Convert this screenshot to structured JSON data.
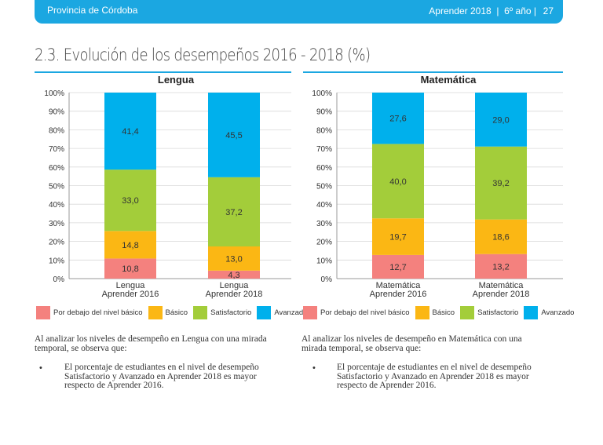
{
  "header": {
    "province": "Provincia de Córdoba",
    "pub": "Aprender 2018  |  6º año |",
    "page": "27"
  },
  "section_title": "2.3. Evolución de los desempeños 2016 - 2018 (%)",
  "colors": {
    "below_basic": "#f4817e",
    "basic": "#fbb714",
    "satisfactory": "#a3cd3a",
    "advanced": "#00b0ec",
    "rule": "#1ba7e1"
  },
  "legend": [
    "Por debajo del nivel básico",
    "Básico",
    "Satisfactorio",
    "Avanzado"
  ],
  "chart_data": [
    {
      "type": "bar",
      "stacked": true,
      "title": "Lengua",
      "categories": [
        "Lengua\nAprender 2016",
        "Lengua\nAprender 2018"
      ],
      "ylim": [
        0,
        100
      ],
      "yticks": [
        "0%",
        "10%",
        "20%",
        "30%",
        "40%",
        "50%",
        "60%",
        "70%",
        "80%",
        "90%",
        "100%"
      ],
      "series": [
        {
          "name": "Por debajo del nivel básico",
          "values": [
            10.8,
            4.3
          ],
          "labels": [
            "10,8",
            "4,3"
          ]
        },
        {
          "name": "Básico",
          "values": [
            14.8,
            13.0
          ],
          "labels": [
            "14,8",
            "13,0"
          ]
        },
        {
          "name": "Satisfactorio",
          "values": [
            33.0,
            37.2
          ],
          "labels": [
            "33,0",
            "37,2"
          ]
        },
        {
          "name": "Avanzado",
          "values": [
            41.4,
            45.5
          ],
          "labels": [
            "41,4",
            "45,5"
          ]
        }
      ]
    },
    {
      "type": "bar",
      "stacked": true,
      "title": "Matemática",
      "categories": [
        "Matemática\nAprender 2016",
        "Matemática\nAprender 2018"
      ],
      "ylim": [
        0,
        100
      ],
      "yticks": [
        "0%",
        "10%",
        "20%",
        "30%",
        "40%",
        "50%",
        "60%",
        "70%",
        "80%",
        "90%",
        "100%"
      ],
      "series": [
        {
          "name": "Por debajo del nivel básico",
          "values": [
            12.7,
            13.2
          ],
          "labels": [
            "12,7",
            "13,2"
          ]
        },
        {
          "name": "Básico",
          "values": [
            19.7,
            18.6
          ],
          "labels": [
            "19,7",
            "18,6"
          ]
        },
        {
          "name": "Satisfactorio",
          "values": [
            40.0,
            39.2
          ],
          "labels": [
            "40,0",
            "39,2"
          ]
        },
        {
          "name": "Avanzado",
          "values": [
            27.6,
            29.0
          ],
          "labels": [
            "27,6",
            "29,0"
          ]
        }
      ]
    }
  ],
  "left_text": {
    "intro_1": "Al analizar los niveles de desempeño en Lengua con una mirada",
    "intro_2": "temporal, se observa que:",
    "bullet_1": "El porcentaje de estudiantes en el nivel de desempeño",
    "bullet_2": "Satisfactorio y Avanzado en Aprender 2018 es mayor",
    "bullet_3": "respecto de Aprender 2016."
  },
  "right_text": {
    "intro_1": "Al analizar los niveles de desempeño en Matemática con una",
    "intro_2": "mirada temporal, se observa que:",
    "bullet_1": "El porcentaje de estudiantes en el nivel de desempeño",
    "bullet_2": "Satisfactorio y Avanzado en Aprender 2018 es mayor",
    "bullet_3": "respecto de Aprender 2016."
  },
  "bullet_mark": "•"
}
